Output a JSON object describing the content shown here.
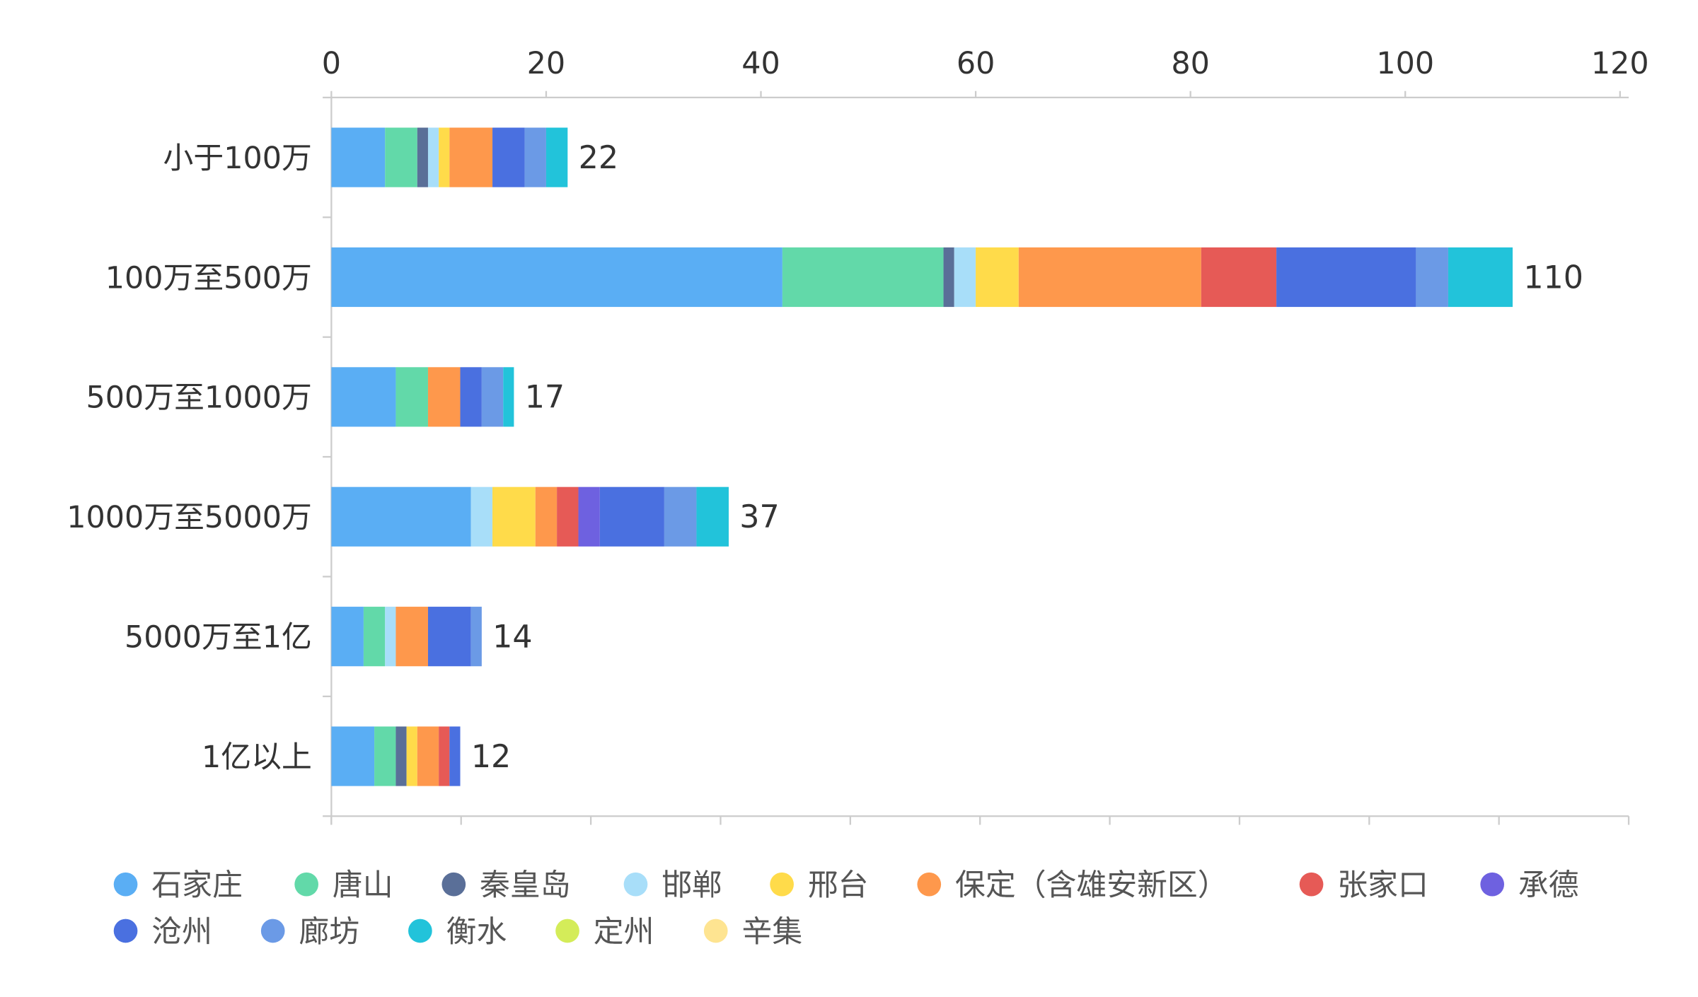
{
  "chart_data": {
    "type": "bar",
    "orientation": "horizontal",
    "stacked": true,
    "title": "",
    "xlabel": "",
    "ylabel": "",
    "xlim": [
      0,
      120
    ],
    "x_ticks": [
      "0",
      "20",
      "40",
      "60",
      "80",
      "100",
      "120"
    ],
    "categories": [
      "小于100万",
      "100万至500万",
      "500万至1000万",
      "1000万至5000万",
      "5000万至1亿",
      "1亿以上"
    ],
    "totals": [
      "22",
      "110",
      "17",
      "37",
      "14",
      "12"
    ],
    "legend_position": "bottom",
    "series": [
      {
        "name": "石家庄",
        "color": "#5aaef4",
        "values": [
          5,
          42,
          6,
          13,
          3,
          4
        ]
      },
      {
        "name": "唐山",
        "color": "#62d9a9",
        "values": [
          3,
          15,
          3,
          0,
          2,
          2
        ]
      },
      {
        "name": "秦皇岛",
        "color": "#5a6f98",
        "values": [
          1,
          1,
          0,
          0,
          0,
          1
        ]
      },
      {
        "name": "邯郸",
        "color": "#a8def9",
        "values": [
          1,
          2,
          0,
          2,
          1,
          0
        ]
      },
      {
        "name": "邢台",
        "color": "#ffdb4a",
        "values": [
          1,
          4,
          0,
          4,
          0,
          1
        ]
      },
      {
        "name": "保定（含雄安新区）",
        "color": "#fe984c",
        "values": [
          4,
          17,
          3,
          2,
          3,
          2
        ]
      },
      {
        "name": "张家口",
        "color": "#e65a56",
        "values": [
          0,
          7,
          0,
          2,
          0,
          1
        ]
      },
      {
        "name": "承德",
        "color": "#6e61e0",
        "values": [
          0,
          0,
          0,
          2,
          0,
          0
        ]
      },
      {
        "name": "沧州",
        "color": "#4a70e0",
        "values": [
          3,
          13,
          2,
          6,
          4,
          1
        ]
      },
      {
        "name": "廊坊",
        "color": "#6b9ae6",
        "values": [
          2,
          3,
          2,
          3,
          1,
          0
        ]
      },
      {
        "name": "衡水",
        "color": "#22c3da",
        "values": [
          2,
          6,
          1,
          3,
          0,
          0
        ]
      },
      {
        "name": "定州",
        "color": "#d4ec59",
        "values": [
          0,
          0,
          0,
          0,
          0,
          0
        ]
      },
      {
        "name": "辛集",
        "color": "#fee491",
        "values": [
          0,
          0,
          0,
          0,
          0,
          0
        ]
      }
    ]
  }
}
